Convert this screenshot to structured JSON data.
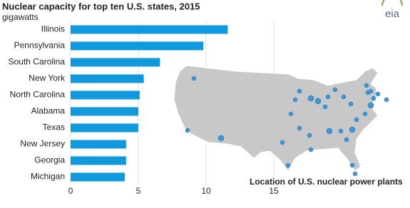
{
  "chart_data": {
    "type": "bar",
    "orientation": "horizontal",
    "title": "Nuclear capacity for top  ten U.S. states, 2015",
    "subtitle": "gigawatts",
    "logo": "eia",
    "annotation": "Location of U.S. nuclear power plants",
    "categories": [
      "Illinois",
      "Pennsylvania",
      "South Carolina",
      "New York",
      "North Carolina",
      "Alabama",
      "Texas",
      "New Jersey",
      "Georgia",
      "Michigan"
    ],
    "values": [
      11.6,
      9.8,
      6.6,
      5.4,
      5.1,
      5.0,
      5.0,
      4.1,
      4.1,
      4.0
    ],
    "color": "#0f9ae0",
    "xlim": [
      0,
      15
    ],
    "xticks": [
      0,
      5,
      10,
      15
    ],
    "grid": true
  }
}
